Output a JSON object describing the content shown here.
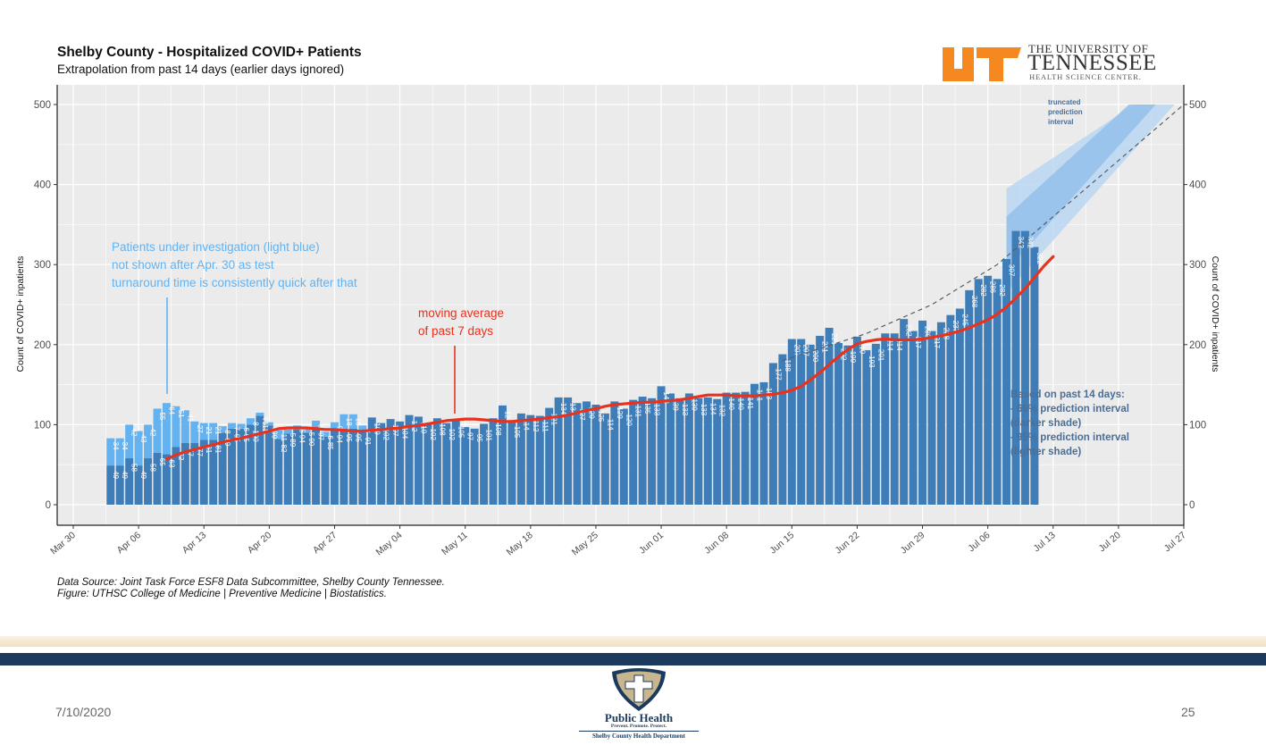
{
  "slide": {
    "date": "7/10/2020",
    "page_number": "25",
    "source_line1": "Data Source: Joint Task Force ESF8 Data Subcommittee, Shelby County Tennessee.",
    "source_line2": "Figure: UTHSC College of Medicine | Preventive Medicine | Biostatistics.",
    "ut_logo": {
      "line1": "THE UNIVERSITY OF",
      "line2": "TENNESSEE",
      "line3": "HEALTH SCIENCE CENTER.",
      "color": "#f5881f"
    },
    "public_health_logo": {
      "title": "Public Health",
      "tagline": "Prevent. Promote. Protect.",
      "department": "Shelby County Health Department",
      "navy": "#1b3a5e",
      "gold": "#c8b78e"
    }
  },
  "chart_data": {
    "type": "bar",
    "title": "Shelby County - Hospitalized COVID+ Patients",
    "subtitle": "Extrapolation from past 14 days (earlier days ignored)",
    "ylabel": "Count of COVID+ inpatients",
    "ylabel_right": "Count of COVID+ inpatients",
    "ylim": [
      0,
      500
    ],
    "yticks": [
      0,
      100,
      200,
      300,
      400,
      500
    ],
    "x_start_date": "2020-03-30",
    "xlim_days": [
      -3,
      120
    ],
    "xticks": [
      {
        "label": "Mar 30",
        "day": 0
      },
      {
        "label": "Apr 06",
        "day": 7
      },
      {
        "label": "Apr 13",
        "day": 14
      },
      {
        "label": "Apr 20",
        "day": 21
      },
      {
        "label": "Apr 27",
        "day": 28
      },
      {
        "label": "May 04",
        "day": 35
      },
      {
        "label": "May 11",
        "day": 42
      },
      {
        "label": "May 18",
        "day": 49
      },
      {
        "label": "May 25",
        "day": 56
      },
      {
        "label": "Jun 01",
        "day": 63
      },
      {
        "label": "Jun 08",
        "day": 70
      },
      {
        "label": "Jun 15",
        "day": 77
      },
      {
        "label": "Jun 22",
        "day": 84
      },
      {
        "label": "Jun 29",
        "day": 91
      },
      {
        "label": "Jul 06",
        "day": 98
      },
      {
        "label": "Jul 13",
        "day": 105
      },
      {
        "label": "Jul 20",
        "day": 112
      },
      {
        "label": "Jul 27",
        "day": 119
      }
    ],
    "grid": true,
    "first_bar_day": 4,
    "series": [
      {
        "name": "Confirmed COVID+ inpatients",
        "color": "#3f7db8",
        "values": [
          49,
          49,
          58,
          49,
          58,
          65,
          63,
          72,
          77,
          77,
          81,
          81,
          90,
          95,
          95,
          100,
          111,
          99,
          82,
          89,
          94,
          90,
          97,
          85,
          94,
          95,
          95,
          91,
          109,
          102,
          107,
          104,
          112,
          110,
          102,
          108,
          102,
          105,
          97,
          95,
          101,
          108,
          124,
          105,
          114,
          112,
          111,
          121,
          134,
          134,
          127,
          129,
          125,
          114,
          129,
          120,
          131,
          135,
          133,
          148,
          139,
          133,
          139,
          133,
          134,
          132,
          140,
          140,
          141,
          151,
          153,
          177,
          188,
          207,
          207,
          200,
          211,
          221,
          202,
          199,
          210,
          193,
          201,
          214,
          214,
          232,
          217,
          230,
          217,
          228,
          237,
          245,
          268,
          282,
          286,
          282,
          307,
          342,
          342,
          322
        ]
      },
      {
        "name": "Patients under investigation",
        "color": "#64b2ef",
        "values": [
          34,
          34,
          42,
          43,
          42,
          55,
          64,
          51,
          41,
          27,
          21,
          21,
          8,
          7,
          6,
          8,
          4,
          4,
          11,
          5,
          5,
          5,
          8,
          6,
          9,
          18,
          18,
          8
        ]
      },
      {
        "name": "moving average of past 7 days",
        "color": "#e8321e",
        "start_index": 6,
        "values": [
          57,
          62,
          66,
          69,
          72,
          75,
          78,
          81,
          83,
          86,
          89,
          92,
          95,
          96,
          96,
          96,
          95,
          94,
          94,
          93,
          92,
          92,
          93,
          94,
          95,
          96,
          98,
          99,
          101,
          103,
          105,
          106,
          107,
          107,
          106,
          105,
          104,
          104,
          105,
          106,
          107,
          109,
          110,
          112,
          115,
          118,
          120,
          123,
          125,
          126,
          127,
          128,
          128,
          129,
          130,
          131,
          133,
          135,
          137,
          137,
          137,
          136,
          136,
          136,
          137,
          138,
          140,
          143,
          148,
          156,
          165,
          175,
          185,
          194,
          201,
          204,
          206,
          207,
          206,
          206,
          206,
          207,
          209,
          211,
          214,
          217,
          221,
          226,
          231,
          238,
          247,
          258,
          270,
          284,
          298,
          310
        ]
      },
      {
        "name": "trend extrapolation",
        "style": "dashed",
        "color": "#555e68",
        "points": [
          [
            76,
            180
          ],
          [
            85,
            214
          ],
          [
            92,
            250
          ],
          [
            99,
            300
          ],
          [
            106,
            370
          ],
          [
            113,
            440
          ],
          [
            119,
            500
          ]
        ]
      }
    ],
    "prediction_intervals": [
      {
        "name": "95% prediction interval",
        "shade": "lighter",
        "color": "#b7d6f3",
        "start_day": 100,
        "lower_start": 265,
        "upper_start": 395,
        "end_day": 118,
        "end_value": 500
      },
      {
        "name": "66% prediction interval",
        "shade": "darker",
        "color": "#93c0ea",
        "start_day": 100,
        "lower_start": 292,
        "upper_start": 360,
        "end_day": 116,
        "end_value": 500
      }
    ],
    "annotations": {
      "pui_note": [
        "Patients under investigation (light blue)",
        "not shown after Apr. 30 as test",
        "turnaround time is consistently quick after that"
      ],
      "pui_color": "#64b2ef",
      "ma_note": [
        "moving average",
        "of past 7 days"
      ],
      "ma_color": "#e8321e",
      "truncated_note": [
        "truncated",
        "prediction",
        "interval"
      ],
      "interval_note": [
        "Based on past 14 days:",
        "- 66% prediction interval",
        "(darker shade)",
        "- 95% prediction interval",
        "(lighter shade)"
      ],
      "interval_note_color": "#4b6e96"
    }
  }
}
